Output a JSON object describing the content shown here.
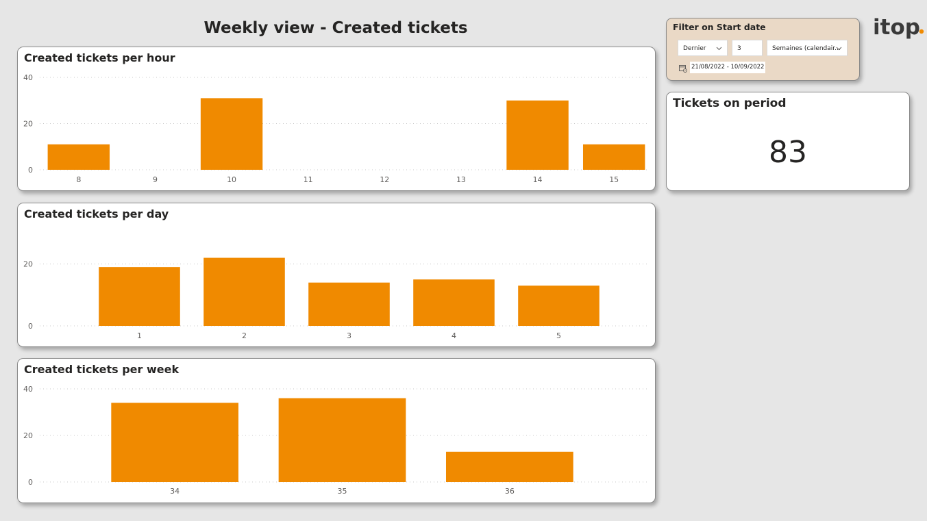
{
  "page": {
    "title": "Weekly view - Created tickets"
  },
  "colors": {
    "bar": "#f08a00",
    "background": "#e6e6e6",
    "filter_panel": "#ead9c6",
    "logo_dot": "#f08a00",
    "text": "#252423"
  },
  "filter": {
    "title": "Filter on Start date",
    "relative_option": "Dernier",
    "count": "3",
    "unit": "Semaines (calendair...",
    "date_range": "21/08/2022 - 10/09/2022",
    "icons": [
      "chevron-down-icon",
      "calendar-icon"
    ]
  },
  "kpi": {
    "title": "Tickets on period",
    "value": "83"
  },
  "logo": {
    "text": "itop"
  },
  "chart_data": [
    {
      "id": "hour",
      "type": "bar",
      "title": "Created tickets per hour",
      "categories": [
        "8",
        "9",
        "10",
        "11",
        "12",
        "13",
        "14",
        "15"
      ],
      "values": [
        11,
        0,
        31,
        0,
        0,
        0,
        30,
        11
      ],
      "ylim": [
        0,
        40
      ],
      "yticks": [
        0,
        20,
        40
      ],
      "grid": true,
      "legend": "none"
    },
    {
      "id": "day",
      "type": "bar",
      "title": "Created tickets per day",
      "categories": [
        "1",
        "2",
        "3",
        "4",
        "5"
      ],
      "values": [
        19,
        22,
        14,
        15,
        13
      ],
      "ylim": [
        0,
        25
      ],
      "yticks": [
        0,
        20
      ],
      "grid": true,
      "legend": "none"
    },
    {
      "id": "week",
      "type": "bar",
      "title": "Created tickets per week",
      "categories": [
        "34",
        "35",
        "36"
      ],
      "values": [
        34,
        36,
        13
      ],
      "ylim": [
        0,
        40
      ],
      "yticks": [
        0,
        20,
        40
      ],
      "grid": true,
      "legend": "none"
    }
  ]
}
